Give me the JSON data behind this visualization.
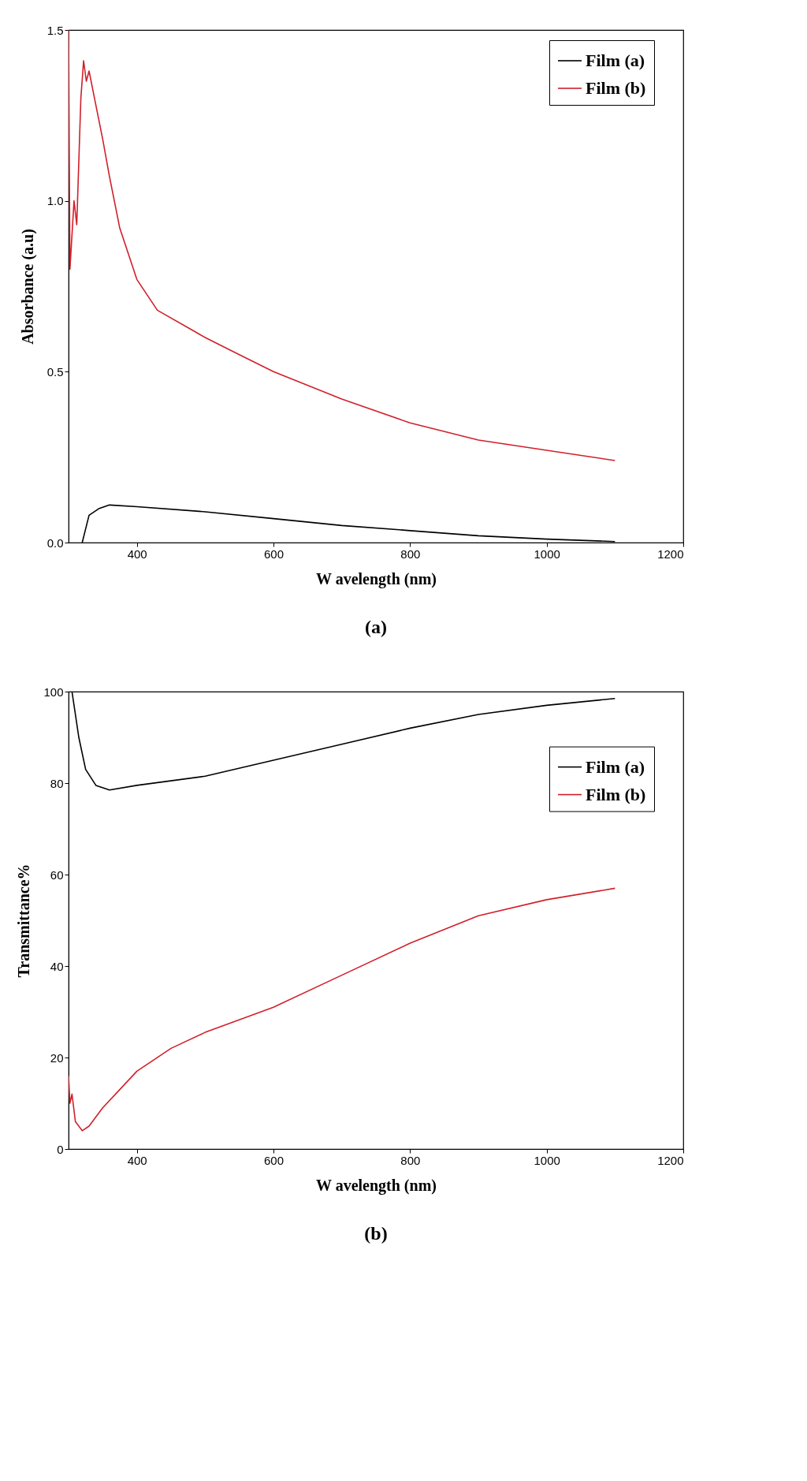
{
  "chart_data": [
    {
      "type": "line",
      "xlabel": "W avelength (nm)",
      "ylabel": "Absorbance (a.u)",
      "annotations": [
        "(a)"
      ],
      "xlim": [
        300,
        1200
      ],
      "xticks": [
        400,
        600,
        800,
        1000,
        1200
      ],
      "ylim": [
        0,
        1.5
      ],
      "yticks": [
        {
          "value": 0,
          "label": "0.0"
        },
        0.5,
        {
          "value": 1,
          "label": "1.0"
        },
        1.5
      ],
      "grid": false,
      "legend": "top right",
      "series": [
        {
          "name": "Film (a)",
          "color": "#000000",
          "x": [
            320,
            330,
            345,
            360,
            400,
            500,
            600,
            700,
            800,
            900,
            1000,
            1100
          ],
          "values": [
            0,
            0.08,
            0.1,
            0.11,
            0.105,
            0.09,
            0.07,
            0.05,
            0.035,
            0.02,
            0.01,
            0.003
          ]
        },
        {
          "name": "Film (b)",
          "color": "#d0202a",
          "x": [
            300,
            302,
            308,
            312,
            318,
            322,
            326,
            330,
            340,
            350,
            360,
            375,
            400,
            430,
            500,
            550,
            600,
            700,
            800,
            900,
            1000,
            1100
          ],
          "values": [
            1.5,
            0.8,
            1.0,
            0.93,
            1.3,
            1.41,
            1.35,
            1.38,
            1.28,
            1.18,
            1.07,
            0.92,
            0.77,
            0.68,
            0.6,
            0.55,
            0.5,
            0.42,
            0.35,
            0.3,
            0.27,
            0.24
          ]
        }
      ]
    },
    {
      "type": "line",
      "xlabel": "W avelength (nm)",
      "ylabel": "Transmittance%",
      "annotations": [
        "(b)"
      ],
      "xlim": [
        300,
        1200
      ],
      "xticks": [
        400,
        600,
        800,
        1000,
        1200
      ],
      "ylim": [
        0,
        100
      ],
      "yticks": [
        0,
        20,
        40,
        60,
        80,
        100
      ],
      "grid": false,
      "legend": "top right",
      "series": [
        {
          "name": "Film (a)",
          "color": "#000000",
          "x": [
            305,
            315,
            325,
            340,
            360,
            400,
            500,
            600,
            700,
            800,
            900,
            1000,
            1100
          ],
          "values": [
            100,
            90,
            83,
            79.5,
            78.5,
            79.5,
            81.5,
            85,
            88.5,
            92,
            95,
            97,
            98.5
          ]
        },
        {
          "name": "Film (b)",
          "color": "#d0202a",
          "x": [
            300,
            302,
            305,
            310,
            320,
            330,
            350,
            375,
            400,
            450,
            500,
            600,
            700,
            800,
            900,
            1000,
            1100
          ],
          "values": [
            16,
            10,
            12,
            6,
            4,
            5,
            9,
            13,
            17,
            22,
            25.5,
            31,
            38,
            45,
            51,
            54.5,
            57
          ]
        }
      ]
    }
  ]
}
